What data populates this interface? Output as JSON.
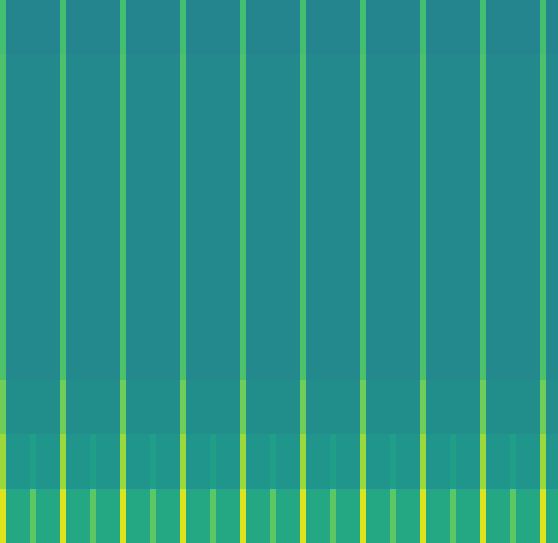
{
  "chart_data": {
    "type": "heatmap",
    "tick_labels": false,
    "zlim": [
      0,
      1
    ],
    "z": [
      [
        0.95,
        0.6,
        0.6,
        0.6,
        0.6,
        0.75,
        0.6,
        0.6,
        0.6,
        0.6,
        0.95,
        0.6,
        0.6,
        0.6,
        0.6,
        0.75,
        0.6,
        0.6,
        0.6,
        0.6,
        0.95,
        0.6,
        0.6,
        0.6,
        0.6,
        0.75,
        0.6,
        0.6,
        0.6,
        0.6,
        0.95,
        0.6,
        0.6,
        0.6,
        0.6,
        0.75,
        0.6,
        0.6,
        0.6,
        0.6,
        0.95,
        0.6,
        0.6,
        0.6,
        0.6,
        0.75,
        0.6,
        0.6,
        0.6,
        0.6,
        0.95,
        0.6,
        0.6,
        0.6,
        0.6,
        0.75,
        0.6,
        0.6,
        0.6,
        0.6,
        0.95,
        0.6,
        0.6,
        0.6,
        0.6,
        0.75,
        0.6,
        0.6,
        0.6,
        0.6,
        0.95,
        0.6,
        0.6,
        0.6,
        0.6,
        0.75,
        0.6,
        0.6,
        0.6,
        0.6,
        0.95,
        0.6,
        0.6,
        0.6,
        0.6,
        0.75,
        0.6,
        0.6,
        0.6,
        0.6,
        0.95,
        0.6,
        0.6
      ],
      [
        0.85,
        0.52,
        0.52,
        0.52,
        0.52,
        0.56,
        0.52,
        0.52,
        0.52,
        0.52,
        0.85,
        0.52,
        0.52,
        0.52,
        0.52,
        0.56,
        0.52,
        0.52,
        0.52,
        0.52,
        0.85,
        0.52,
        0.52,
        0.52,
        0.52,
        0.56,
        0.52,
        0.52,
        0.52,
        0.52,
        0.85,
        0.52,
        0.52,
        0.52,
        0.52,
        0.56,
        0.52,
        0.52,
        0.52,
        0.52,
        0.85,
        0.52,
        0.52,
        0.52,
        0.52,
        0.56,
        0.52,
        0.52,
        0.52,
        0.52,
        0.85,
        0.52,
        0.52,
        0.52,
        0.52,
        0.56,
        0.52,
        0.52,
        0.52,
        0.52,
        0.85,
        0.52,
        0.52,
        0.52,
        0.52,
        0.56,
        0.52,
        0.52,
        0.52,
        0.52,
        0.85,
        0.52,
        0.52,
        0.52,
        0.52,
        0.56,
        0.52,
        0.52,
        0.52,
        0.52,
        0.85,
        0.52,
        0.52,
        0.52,
        0.52,
        0.56,
        0.52,
        0.52,
        0.52,
        0.52,
        0.85,
        0.52,
        0.52
      ],
      [
        0.78,
        0.49,
        0.49,
        0.49,
        0.49,
        0.49,
        0.49,
        0.49,
        0.49,
        0.49,
        0.78,
        0.49,
        0.49,
        0.49,
        0.49,
        0.49,
        0.49,
        0.49,
        0.49,
        0.49,
        0.78,
        0.49,
        0.49,
        0.49,
        0.49,
        0.49,
        0.49,
        0.49,
        0.49,
        0.49,
        0.78,
        0.49,
        0.49,
        0.49,
        0.49,
        0.49,
        0.49,
        0.49,
        0.49,
        0.49,
        0.78,
        0.49,
        0.49,
        0.49,
        0.49,
        0.49,
        0.49,
        0.49,
        0.49,
        0.49,
        0.78,
        0.49,
        0.49,
        0.49,
        0.49,
        0.49,
        0.49,
        0.49,
        0.49,
        0.49,
        0.78,
        0.49,
        0.49,
        0.49,
        0.49,
        0.49,
        0.49,
        0.49,
        0.49,
        0.49,
        0.78,
        0.49,
        0.49,
        0.49,
        0.49,
        0.49,
        0.49,
        0.49,
        0.49,
        0.49,
        0.78,
        0.49,
        0.49,
        0.49,
        0.49,
        0.49,
        0.49,
        0.49,
        0.49,
        0.49,
        0.78,
        0.49,
        0.49
      ],
      [
        0.72,
        0.47,
        0.47,
        0.47,
        0.47,
        0.47,
        0.47,
        0.47,
        0.47,
        0.47,
        0.72,
        0.47,
        0.47,
        0.47,
        0.47,
        0.47,
        0.47,
        0.47,
        0.47,
        0.47,
        0.72,
        0.47,
        0.47,
        0.47,
        0.47,
        0.47,
        0.47,
        0.47,
        0.47,
        0.47,
        0.72,
        0.47,
        0.47,
        0.47,
        0.47,
        0.47,
        0.47,
        0.47,
        0.47,
        0.47,
        0.72,
        0.47,
        0.47,
        0.47,
        0.47,
        0.47,
        0.47,
        0.47,
        0.47,
        0.47,
        0.72,
        0.47,
        0.47,
        0.47,
        0.47,
        0.47,
        0.47,
        0.47,
        0.47,
        0.47,
        0.72,
        0.47,
        0.47,
        0.47,
        0.47,
        0.47,
        0.47,
        0.47,
        0.47,
        0.47,
        0.72,
        0.47,
        0.47,
        0.47,
        0.47,
        0.47,
        0.47,
        0.47,
        0.47,
        0.47,
        0.72,
        0.47,
        0.47,
        0.47,
        0.47,
        0.47,
        0.47,
        0.47,
        0.47,
        0.47,
        0.72,
        0.47,
        0.47
      ],
      [
        0.72,
        0.47,
        0.47,
        0.47,
        0.47,
        0.47,
        0.47,
        0.47,
        0.47,
        0.47,
        0.72,
        0.47,
        0.47,
        0.47,
        0.47,
        0.47,
        0.47,
        0.47,
        0.47,
        0.47,
        0.72,
        0.47,
        0.47,
        0.47,
        0.47,
        0.47,
        0.47,
        0.47,
        0.47,
        0.47,
        0.72,
        0.47,
        0.47,
        0.47,
        0.47,
        0.47,
        0.47,
        0.47,
        0.47,
        0.47,
        0.72,
        0.47,
        0.47,
        0.47,
        0.47,
        0.47,
        0.47,
        0.47,
        0.47,
        0.47,
        0.72,
        0.47,
        0.47,
        0.47,
        0.47,
        0.47,
        0.47,
        0.47,
        0.47,
        0.47,
        0.72,
        0.47,
        0.47,
        0.47,
        0.47,
        0.47,
        0.47,
        0.47,
        0.47,
        0.47,
        0.72,
        0.47,
        0.47,
        0.47,
        0.47,
        0.47,
        0.47,
        0.47,
        0.47,
        0.47,
        0.72,
        0.47,
        0.47,
        0.47,
        0.47,
        0.47,
        0.47,
        0.47,
        0.47,
        0.47,
        0.72,
        0.47,
        0.47
      ],
      [
        0.72,
        0.47,
        0.47,
        0.47,
        0.47,
        0.47,
        0.47,
        0.47,
        0.47,
        0.47,
        0.72,
        0.47,
        0.47,
        0.47,
        0.47,
        0.47,
        0.47,
        0.47,
        0.47,
        0.47,
        0.72,
        0.47,
        0.47,
        0.47,
        0.47,
        0.47,
        0.47,
        0.47,
        0.47,
        0.47,
        0.72,
        0.47,
        0.47,
        0.47,
        0.47,
        0.47,
        0.47,
        0.47,
        0.47,
        0.47,
        0.72,
        0.47,
        0.47,
        0.47,
        0.47,
        0.47,
        0.47,
        0.47,
        0.47,
        0.47,
        0.72,
        0.47,
        0.47,
        0.47,
        0.47,
        0.47,
        0.47,
        0.47,
        0.47,
        0.47,
        0.72,
        0.47,
        0.47,
        0.47,
        0.47,
        0.47,
        0.47,
        0.47,
        0.47,
        0.47,
        0.72,
        0.47,
        0.47,
        0.47,
        0.47,
        0.47,
        0.47,
        0.47,
        0.47,
        0.47,
        0.72,
        0.47,
        0.47,
        0.47,
        0.47,
        0.47,
        0.47,
        0.47,
        0.47,
        0.47,
        0.72,
        0.47,
        0.47
      ],
      [
        0.72,
        0.47,
        0.47,
        0.47,
        0.47,
        0.47,
        0.47,
        0.47,
        0.47,
        0.47,
        0.72,
        0.47,
        0.47,
        0.47,
        0.47,
        0.47,
        0.47,
        0.47,
        0.47,
        0.47,
        0.72,
        0.47,
        0.47,
        0.47,
        0.47,
        0.47,
        0.47,
        0.47,
        0.47,
        0.47,
        0.72,
        0.47,
        0.47,
        0.47,
        0.47,
        0.47,
        0.47,
        0.47,
        0.47,
        0.47,
        0.72,
        0.47,
        0.47,
        0.47,
        0.47,
        0.47,
        0.47,
        0.47,
        0.47,
        0.47,
        0.72,
        0.47,
        0.47,
        0.47,
        0.47,
        0.47,
        0.47,
        0.47,
        0.47,
        0.47,
        0.72,
        0.47,
        0.47,
        0.47,
        0.47,
        0.47,
        0.47,
        0.47,
        0.47,
        0.47,
        0.72,
        0.47,
        0.47,
        0.47,
        0.47,
        0.47,
        0.47,
        0.47,
        0.47,
        0.47,
        0.72,
        0.47,
        0.47,
        0.47,
        0.47,
        0.47,
        0.47,
        0.47,
        0.47,
        0.47,
        0.72,
        0.47,
        0.47
      ],
      [
        0.72,
        0.47,
        0.47,
        0.47,
        0.47,
        0.47,
        0.47,
        0.47,
        0.47,
        0.47,
        0.72,
        0.47,
        0.47,
        0.47,
        0.47,
        0.47,
        0.47,
        0.47,
        0.47,
        0.47,
        0.72,
        0.47,
        0.47,
        0.47,
        0.47,
        0.47,
        0.47,
        0.47,
        0.47,
        0.47,
        0.72,
        0.47,
        0.47,
        0.47,
        0.47,
        0.47,
        0.47,
        0.47,
        0.47,
        0.47,
        0.72,
        0.47,
        0.47,
        0.47,
        0.47,
        0.47,
        0.47,
        0.47,
        0.47,
        0.47,
        0.72,
        0.47,
        0.47,
        0.47,
        0.47,
        0.47,
        0.47,
        0.47,
        0.47,
        0.47,
        0.72,
        0.47,
        0.47,
        0.47,
        0.47,
        0.47,
        0.47,
        0.47,
        0.47,
        0.47,
        0.72,
        0.47,
        0.47,
        0.47,
        0.47,
        0.47,
        0.47,
        0.47,
        0.47,
        0.47,
        0.72,
        0.47,
        0.47,
        0.47,
        0.47,
        0.47,
        0.47,
        0.47,
        0.47,
        0.47,
        0.72,
        0.47,
        0.47
      ],
      [
        0.72,
        0.47,
        0.47,
        0.47,
        0.47,
        0.47,
        0.47,
        0.47,
        0.47,
        0.47,
        0.72,
        0.47,
        0.47,
        0.47,
        0.47,
        0.47,
        0.47,
        0.47,
        0.47,
        0.47,
        0.72,
        0.47,
        0.47,
        0.47,
        0.47,
        0.47,
        0.47,
        0.47,
        0.47,
        0.47,
        0.72,
        0.47,
        0.47,
        0.47,
        0.47,
        0.47,
        0.47,
        0.47,
        0.47,
        0.47,
        0.72,
        0.47,
        0.47,
        0.47,
        0.47,
        0.47,
        0.47,
        0.47,
        0.47,
        0.47,
        0.72,
        0.47,
        0.47,
        0.47,
        0.47,
        0.47,
        0.47,
        0.47,
        0.47,
        0.47,
        0.72,
        0.47,
        0.47,
        0.47,
        0.47,
        0.47,
        0.47,
        0.47,
        0.47,
        0.47,
        0.72,
        0.47,
        0.47,
        0.47,
        0.47,
        0.47,
        0.47,
        0.47,
        0.47,
        0.47,
        0.72,
        0.47,
        0.47,
        0.47,
        0.47,
        0.47,
        0.47,
        0.47,
        0.47,
        0.47,
        0.72,
        0.47,
        0.47
      ],
      [
        0.7,
        0.45,
        0.45,
        0.45,
        0.45,
        0.45,
        0.45,
        0.45,
        0.45,
        0.45,
        0.7,
        0.45,
        0.45,
        0.45,
        0.45,
        0.45,
        0.45,
        0.45,
        0.45,
        0.45,
        0.7,
        0.45,
        0.45,
        0.45,
        0.45,
        0.45,
        0.45,
        0.45,
        0.45,
        0.45,
        0.7,
        0.45,
        0.45,
        0.45,
        0.45,
        0.45,
        0.45,
        0.45,
        0.45,
        0.45,
        0.7,
        0.45,
        0.45,
        0.45,
        0.45,
        0.45,
        0.45,
        0.45,
        0.45,
        0.45,
        0.7,
        0.45,
        0.45,
        0.45,
        0.45,
        0.45,
        0.45,
        0.45,
        0.45,
        0.45,
        0.7,
        0.45,
        0.45,
        0.45,
        0.45,
        0.45,
        0.45,
        0.45,
        0.45,
        0.45,
        0.7,
        0.45,
        0.45,
        0.45,
        0.45,
        0.45,
        0.45,
        0.45,
        0.45,
        0.45,
        0.7,
        0.45,
        0.45,
        0.45,
        0.45,
        0.45,
        0.45,
        0.45,
        0.45,
        0.45,
        0.7,
        0.45,
        0.45
      ]
    ]
  }
}
